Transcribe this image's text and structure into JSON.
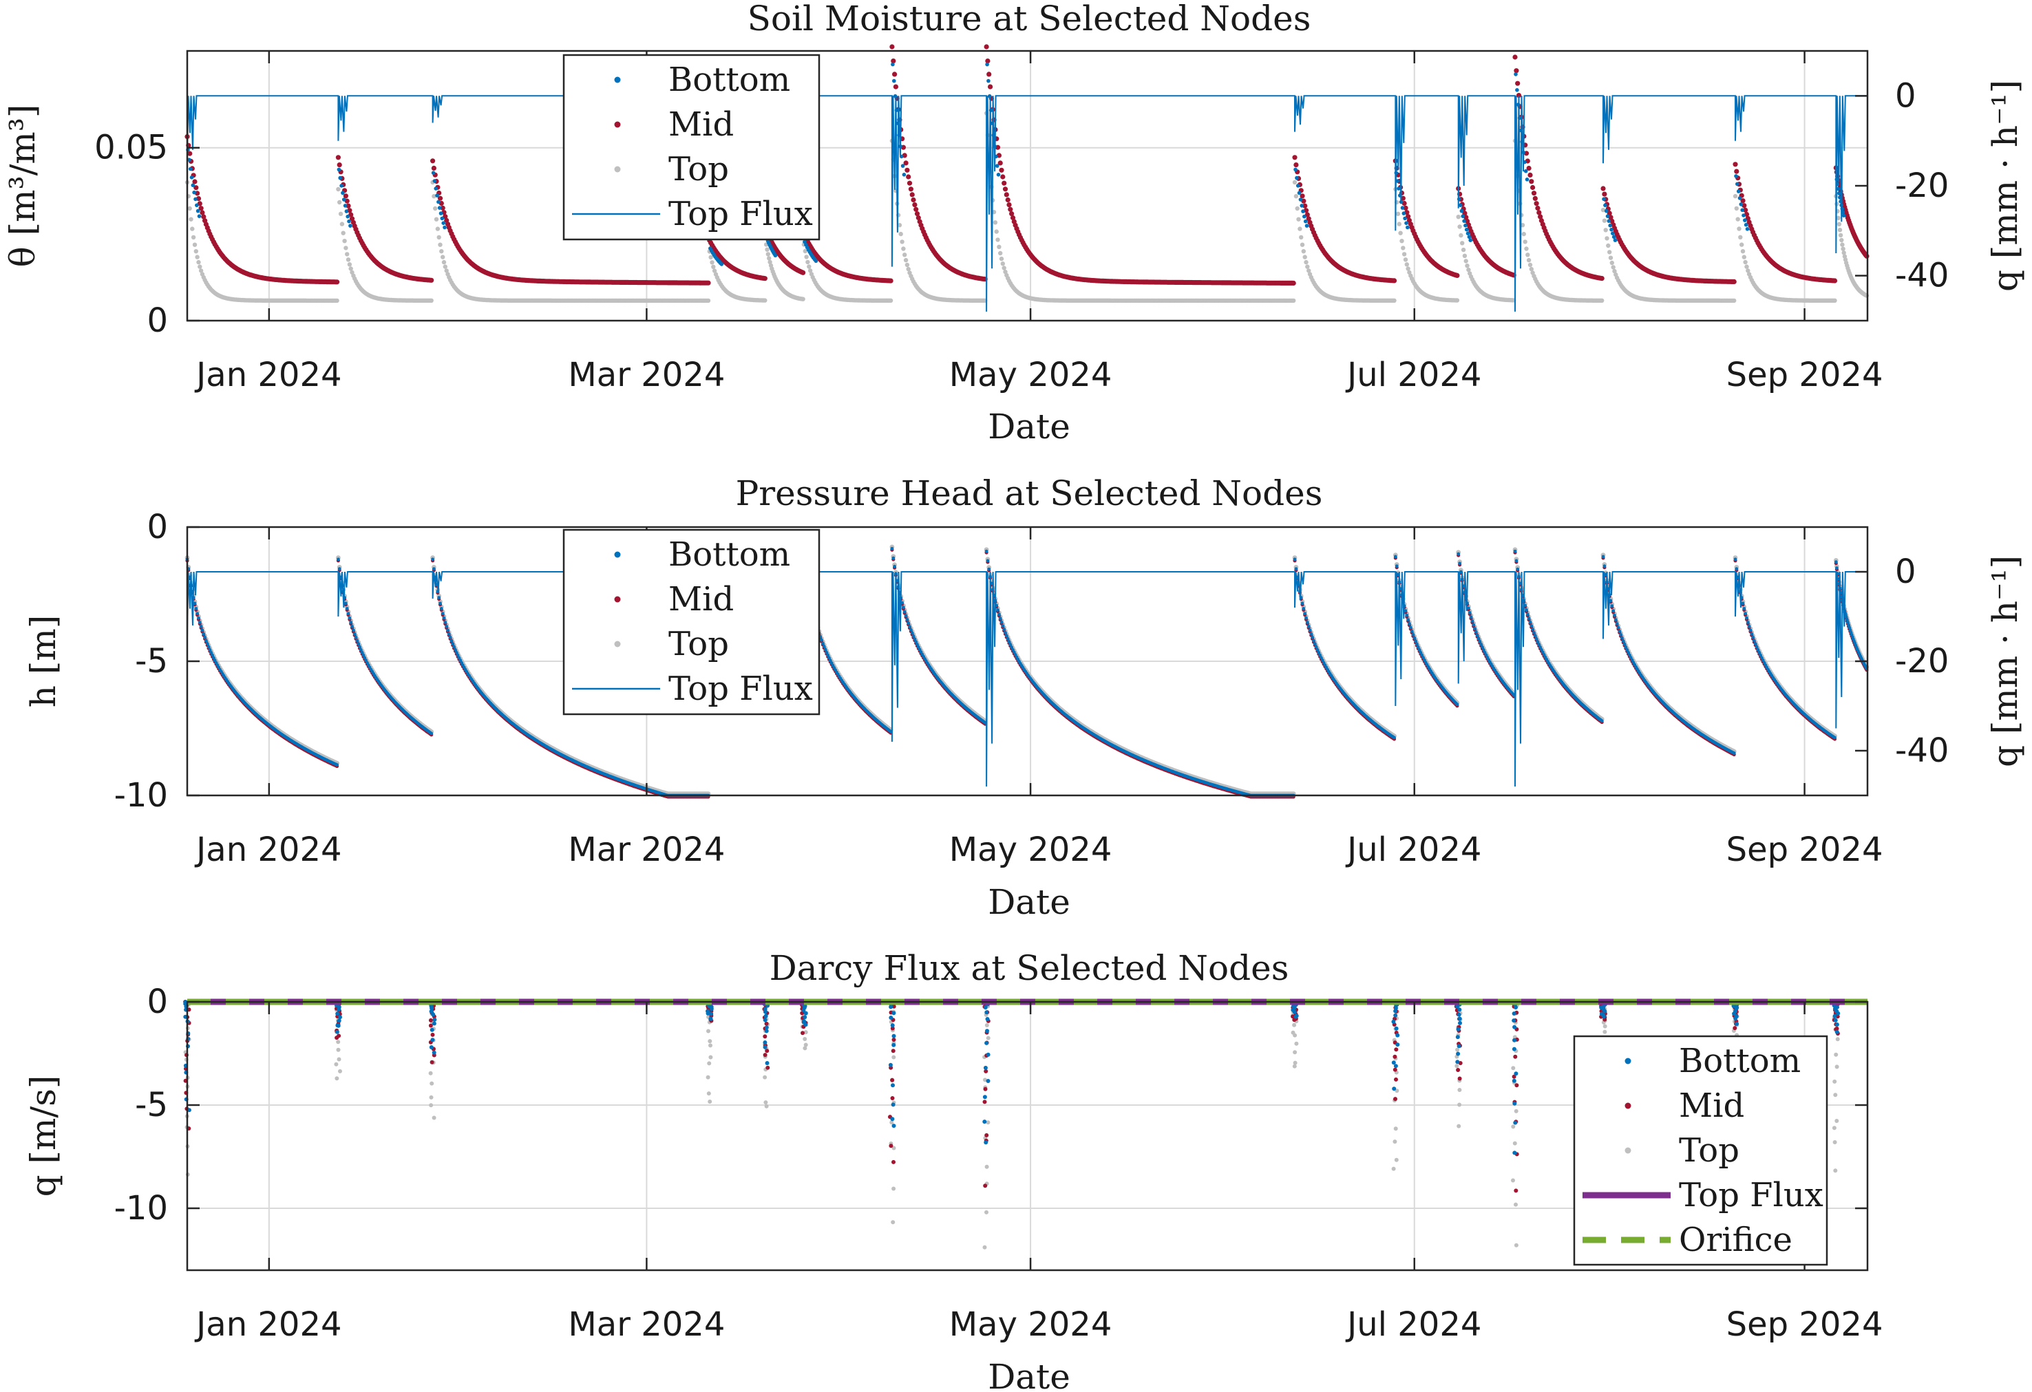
{
  "colors": {
    "bottom": "#0072BD",
    "mid": "#A2142F",
    "top": "#BFBFBF",
    "top_flux_line": "#0072BD",
    "top_flux_dar": "#7E2F8E",
    "orifice": "#77AC30"
  },
  "chart_data": [
    {
      "type": "scatter",
      "title": "Soil Moisture at Selected Nodes",
      "xlabel": "Date",
      "ylabel": "θ [m³/m³]",
      "y2label": "q [mm · h⁻¹]",
      "xlim": [
        "2023-12-19",
        "2024-09-11"
      ],
      "xticks": [
        {
          "date": "2024-01-01",
          "label": "Jan 2024"
        },
        {
          "date": "2024-03-01",
          "label": "Mar 2024"
        },
        {
          "date": "2024-05-01",
          "label": "May 2024"
        },
        {
          "date": "2024-07-01",
          "label": "Jul 2024"
        },
        {
          "date": "2024-09-01",
          "label": "Sep 2024"
        }
      ],
      "ylim": [
        0,
        0.078
      ],
      "yticks": [
        {
          "value": 0,
          "label": "0"
        },
        {
          "value": 0.05,
          "label": "0.05"
        }
      ],
      "y2lim": [
        -50,
        10
      ],
      "y2ticks": [
        {
          "value": 0,
          "label": "0"
        },
        {
          "value": -20,
          "label": "-20"
        },
        {
          "value": -40,
          "label": "-40"
        }
      ],
      "grid": true,
      "legend": {
        "placement": "top-center",
        "entries": [
          "Bottom",
          "Mid",
          "Top",
          "Top Flux"
        ]
      },
      "events": [
        {
          "date": "2023-12-19",
          "theta_mid": 0.052,
          "theta_top": 0.04,
          "h": -1.2,
          "q_mid": -7.0,
          "q_top": -8.5,
          "flux": -15
        },
        {
          "date": "2024-01-12",
          "theta_mid": 0.046,
          "theta_top": 0.038,
          "h": -1.2,
          "q_mid": -2.0,
          "q_top": -4.3,
          "flux": -10
        },
        {
          "date": "2024-01-27",
          "theta_mid": 0.045,
          "theta_top": 0.04,
          "h": -1.2,
          "q_mid": -3.3,
          "q_top": -6.5,
          "flux": -6
        },
        {
          "date": "2024-03-11",
          "theta_mid": 0.022,
          "theta_top": 0.02,
          "h": -1.3,
          "q_mid": -1.0,
          "q_top": -5.3,
          "flux": -3
        },
        {
          "date": "2024-03-20",
          "theta_mid": 0.025,
          "theta_top": 0.022,
          "h": -1.3,
          "q_mid": -3.5,
          "q_top": -5.6,
          "flux": -5
        },
        {
          "date": "2024-03-26",
          "theta_mid": 0.024,
          "theta_top": 0.022,
          "h": -1.3,
          "q_mid": -1.6,
          "q_top": -2.5,
          "flux": -3
        },
        {
          "date": "2024-04-09",
          "theta_mid": 0.078,
          "theta_top": 0.052,
          "h": -0.8,
          "q_mid": -8.6,
          "q_top": -10.7,
          "flux": -38
        },
        {
          "date": "2024-04-24",
          "theta_mid": 0.078,
          "theta_top": 0.06,
          "h": -0.9,
          "q_mid": -9.2,
          "q_top": -13.1,
          "flux": -48
        },
        {
          "date": "2024-06-12",
          "theta_mid": 0.046,
          "theta_top": 0.04,
          "h": -1.2,
          "q_mid": -1.0,
          "q_top": -3.4,
          "flux": -8
        },
        {
          "date": "2024-06-28",
          "theta_mid": 0.045,
          "theta_top": 0.038,
          "h": -1.1,
          "q_mid": -5.1,
          "q_top": -9.5,
          "flux": -30
        },
        {
          "date": "2024-07-08",
          "theta_mid": 0.037,
          "theta_top": 0.03,
          "h": -1.0,
          "q_mid": -4.1,
          "q_top": -6.4,
          "flux": -25
        },
        {
          "date": "2024-07-17",
          "theta_mid": 0.075,
          "theta_top": 0.052,
          "h": -0.9,
          "q_mid": -9.3,
          "q_top": -12.0,
          "flux": -48
        },
        {
          "date": "2024-07-31",
          "theta_mid": 0.037,
          "theta_top": 0.032,
          "h": -1.1,
          "q_mid": -1.0,
          "q_top": -2.5,
          "flux": -15
        },
        {
          "date": "2024-08-21",
          "theta_mid": 0.044,
          "theta_top": 0.036,
          "h": -1.2,
          "q_mid": -1.3,
          "q_top": -2.7,
          "flux": -10
        },
        {
          "date": "2024-09-06",
          "theta_mid": 0.043,
          "theta_top": 0.036,
          "h": -1.3,
          "q_mid": -1.8,
          "q_top": -9.0,
          "flux": -35
        }
      ]
    },
    {
      "type": "scatter",
      "title": "Pressure Head at Selected Nodes",
      "xlabel": "Date",
      "ylabel": "h [m]",
      "y2label": "q [mm · h⁻¹]",
      "ylim": [
        -10,
        0
      ],
      "yticks": [
        {
          "value": 0,
          "label": "0"
        },
        {
          "value": -5,
          "label": "-5"
        },
        {
          "value": -10,
          "label": "-10"
        }
      ],
      "y2lim": [
        -50,
        10
      ],
      "y2ticks": [
        {
          "value": 0,
          "label": "0"
        },
        {
          "value": -20,
          "label": "-20"
        },
        {
          "value": -40,
          "label": "-40"
        }
      ],
      "grid": true,
      "legend": {
        "placement": "top-center",
        "entries": [
          "Bottom",
          "Mid",
          "Top",
          "Top Flux"
        ]
      }
    },
    {
      "type": "scatter",
      "title": "Darcy Flux at Selected Nodes",
      "xlabel": "Date",
      "ylabel": "q [m/s]",
      "ylim": [
        -13,
        0
      ],
      "yticks": [
        {
          "value": 0,
          "label": "0"
        },
        {
          "value": -5,
          "label": "-5"
        },
        {
          "value": -10,
          "label": "-10"
        }
      ],
      "grid": true,
      "legend": {
        "placement": "bottom-right",
        "entries": [
          "Bottom",
          "Mid",
          "Top",
          "Top Flux",
          "Orifice"
        ]
      }
    }
  ]
}
